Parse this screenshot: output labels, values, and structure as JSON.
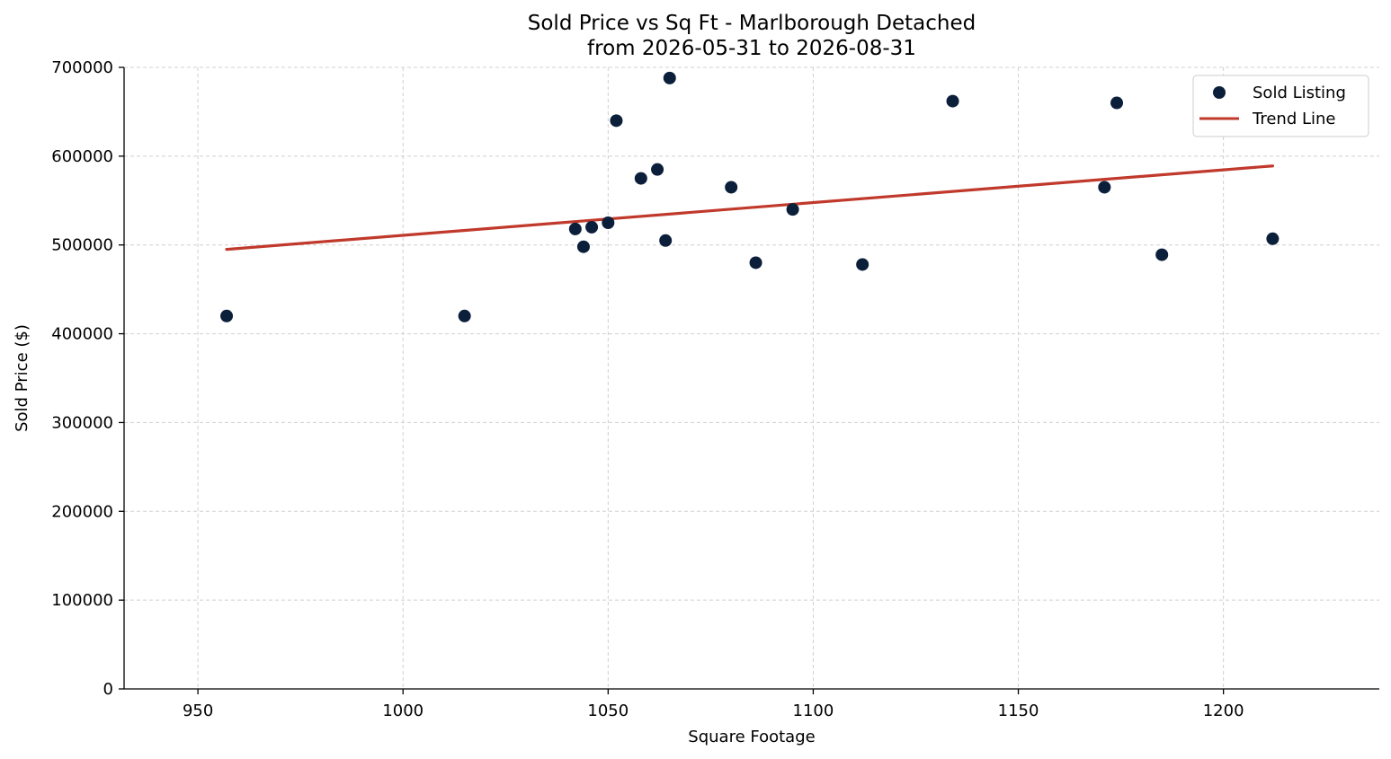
{
  "chart_data": {
    "type": "scatter",
    "title_line1": "Sold Price vs Sq Ft - Marlborough Detached",
    "title_line2": "from 2026-05-31 to 2026-08-31",
    "xlabel": "Square Footage",
    "ylabel": "Sold Price ($)",
    "xlim": [
      932,
      1238
    ],
    "ylim": [
      0,
      700000
    ],
    "xticks": [
      "950",
      "1000",
      "1050",
      "1100",
      "1150",
      "1200"
    ],
    "yticks": [
      "0",
      "100000",
      "200000",
      "300000",
      "400000",
      "500000",
      "600000",
      "700000"
    ],
    "grid": true,
    "legend_position": "top-right",
    "colors": {
      "points": "#0b1f3a",
      "trend": "#c0392b"
    },
    "series": [
      {
        "name": "Sold Listing",
        "kind": "scatter",
        "points": [
          [
            957,
            420000
          ],
          [
            1015,
            420000
          ],
          [
            1042,
            518000
          ],
          [
            1044,
            498000
          ],
          [
            1046,
            520000
          ],
          [
            1050,
            525000
          ],
          [
            1052,
            640000
          ],
          [
            1058,
            575000
          ],
          [
            1062,
            585000
          ],
          [
            1064,
            505000
          ],
          [
            1065,
            688000
          ],
          [
            1080,
            565000
          ],
          [
            1086,
            480000
          ],
          [
            1095,
            540000
          ],
          [
            1112,
            478000
          ],
          [
            1134,
            662000
          ],
          [
            1171,
            565000
          ],
          [
            1174,
            660000
          ],
          [
            1185,
            489000
          ],
          [
            1212,
            507000
          ]
        ]
      },
      {
        "name": "Trend Line",
        "kind": "line",
        "points": [
          [
            957,
            495000
          ],
          [
            1212,
            589000
          ]
        ]
      }
    ]
  }
}
